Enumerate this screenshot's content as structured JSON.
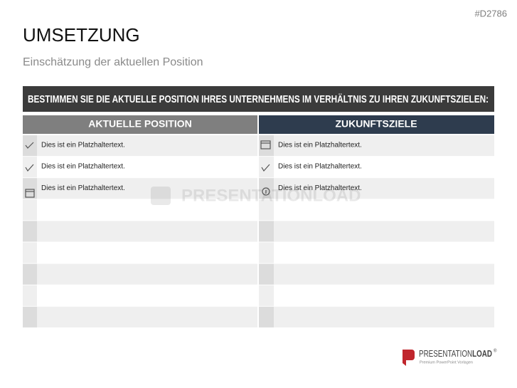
{
  "slide_id": "#D2786",
  "header": {
    "title": "UMSETZUNG",
    "subtitle": "Einschätzung der aktuellen Position"
  },
  "banner": "BESTIMMEN SIE DIE AKTUELLE POSITION IHRES UNTERNEHMENS IM VERHÄLTNIS ZU IHREN ZUKUNFTSZIELEN:",
  "table": {
    "columns": [
      "AKTUELLE POSITION",
      "ZUKUNFTSZIELE"
    ],
    "rows": [
      [
        "Dies ist ein Platzhaltertext.",
        "Dies ist ein Platzhaltertext."
      ],
      [
        "Dies ist ein Platzhaltertext.",
        "Dies ist ein Platzhaltertext."
      ],
      [
        "Dies ist ein Platzhaltertext.",
        "Dies ist ein Platzhaltertext."
      ]
    ]
  },
  "watermark": "PRESENTATIONLOAD",
  "logo": {
    "name_part1": "PRESENTATION",
    "name_part2": "LOAD",
    "registered": "®",
    "tagline": "Premium PowerPoint Vorlagen"
  }
}
